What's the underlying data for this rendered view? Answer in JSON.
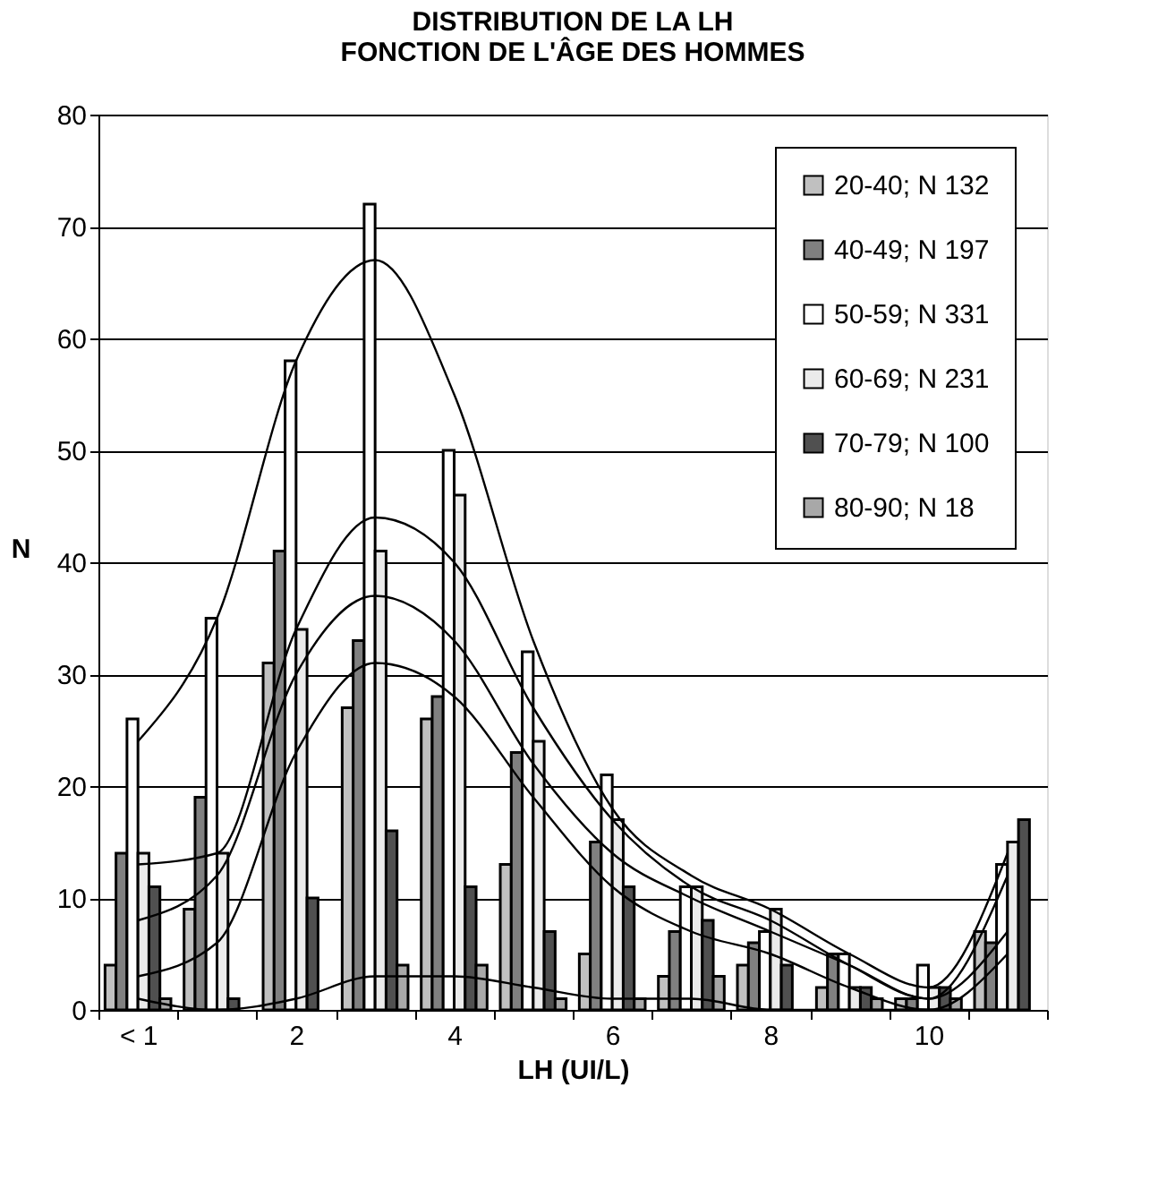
{
  "chart_data": {
    "type": "bar",
    "title": [
      "DISTRIBUTION DE LA LH",
      "FONCTION DE L'ÂGE DES HOMMES"
    ],
    "xlabel": "LH (UI/L)",
    "ylabel": "N",
    "categories": [
      "< 1",
      null,
      "2",
      null,
      "4",
      null,
      "6",
      null,
      "8",
      null,
      "10",
      null
    ],
    "series": [
      {
        "name": "20-40; N 132",
        "color": "#c0c0c0",
        "values": [
          4,
          9,
          31,
          27,
          26,
          13,
          5,
          3,
          4,
          2,
          1,
          7
        ]
      },
      {
        "name": "40-49; N 197",
        "color": "#808080",
        "values": [
          14,
          19,
          41,
          33,
          28,
          23,
          15,
          7,
          6,
          5,
          1,
          6
        ]
      },
      {
        "name": "50-59; N 331",
        "color": "#ffffff",
        "values": [
          26,
          35,
          58,
          72,
          50,
          32,
          21,
          11,
          7,
          5,
          4,
          13
        ]
      },
      {
        "name": "60-69; N 231",
        "color": "#ebebeb",
        "values": [
          14,
          14,
          34,
          41,
          46,
          24,
          17,
          11,
          9,
          2,
          2,
          15
        ]
      },
      {
        "name": "70-79; N 100",
        "color": "#505050",
        "values": [
          11,
          1,
          10,
          16,
          11,
          7,
          11,
          8,
          4,
          2,
          2,
          17
        ]
      },
      {
        "name": "80-90; N 18",
        "color": "#a8a8a8",
        "values": [
          1,
          0,
          0,
          4,
          4,
          1,
          1,
          3,
          0,
          1,
          1,
          0
        ]
      },
      {
        "type": "line",
        "color": "#000000",
        "values": [
          24,
          35,
          58,
          67,
          55,
          33,
          18,
          12,
          9,
          5,
          2,
          14
        ]
      },
      {
        "type": "line",
        "color": "#000000",
        "values": [
          13,
          14,
          34,
          44,
          40,
          27,
          17,
          11,
          8,
          4,
          1,
          7
        ]
      },
      {
        "type": "line",
        "color": "#000000",
        "values": [
          8,
          12,
          30,
          37,
          33,
          22,
          14,
          10,
          7,
          4,
          1,
          12
        ]
      },
      {
        "type": "line",
        "color": "#000000",
        "values": [
          3,
          6,
          23,
          31,
          28,
          19,
          11,
          7,
          5,
          2,
          0,
          5
        ]
      },
      {
        "type": "line",
        "color": "#000000",
        "values": [
          1,
          0,
          1,
          3,
          3,
          2,
          1,
          1,
          0,
          0,
          0,
          0
        ]
      }
    ],
    "ylim": [
      0,
      80
    ],
    "yticks": [
      0,
      10,
      20,
      30,
      40,
      50,
      60,
      70,
      80
    ],
    "grid": "y",
    "legend": "top right"
  }
}
